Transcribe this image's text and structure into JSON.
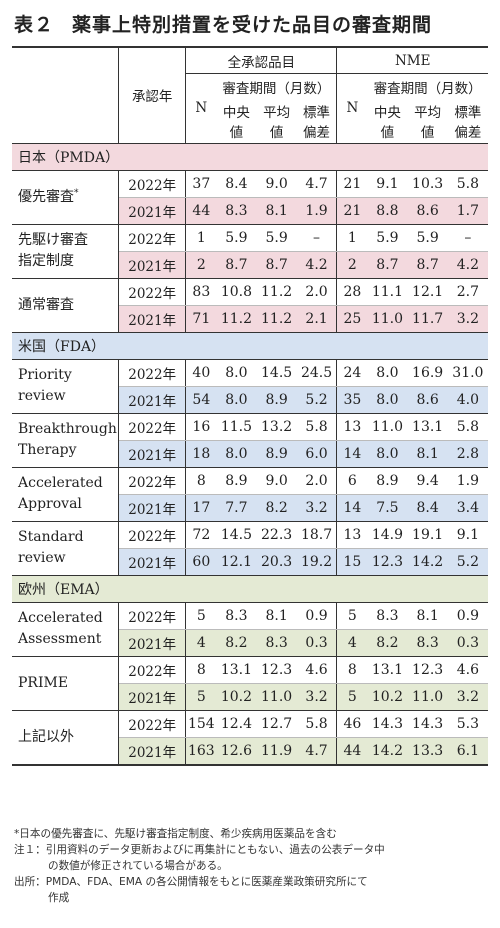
{
  "title_number": "表２",
  "title": "薬事上特別措置を受けた品目の審査期間",
  "header": {
    "year_col": "承認年",
    "group_all": "全承認品目",
    "group_nme": "NME",
    "n": "N",
    "period": "審査期間（月数）",
    "median_l1": "中央",
    "median_l2": "値",
    "mean_l1": "平均",
    "mean_l2": "値",
    "sd_l1": "標準",
    "sd_l2": "偏差"
  },
  "sections": [
    {
      "name": "日本（PMDA）",
      "groups": [
        {
          "label_l1": "優先審査",
          "label_sup": "*",
          "label_l2": "",
          "rows": [
            {
              "year": "2022年",
              "n": "37",
              "med": "8.4",
              "mean": "9.0",
              "sd": "4.7",
              "nn": "21",
              "nmed": "9.1",
              "nmean": "10.3",
              "nsd": "5.8"
            },
            {
              "year": "2021年",
              "n": "44",
              "med": "8.3",
              "mean": "8.1",
              "sd": "1.9",
              "nn": "21",
              "nmed": "8.8",
              "nmean": "8.6",
              "nsd": "1.7"
            }
          ]
        },
        {
          "label_l1": "先駆け審査",
          "label_sup": "",
          "label_l2": "指定制度",
          "rows": [
            {
              "year": "2022年",
              "n": "1",
              "med": "5.9",
              "mean": "5.9",
              "sd": "–",
              "nn": "1",
              "nmed": "5.9",
              "nmean": "5.9",
              "nsd": "–"
            },
            {
              "year": "2021年",
              "n": "2",
              "med": "8.7",
              "mean": "8.7",
              "sd": "4.2",
              "nn": "2",
              "nmed": "8.7",
              "nmean": "8.7",
              "nsd": "4.2"
            }
          ]
        },
        {
          "label_l1": "通常審査",
          "label_sup": "",
          "label_l2": "",
          "rows": [
            {
              "year": "2022年",
              "n": "83",
              "med": "10.8",
              "mean": "11.2",
              "sd": "2.0",
              "nn": "28",
              "nmed": "11.1",
              "nmean": "12.1",
              "nsd": "2.7"
            },
            {
              "year": "2021年",
              "n": "71",
              "med": "11.2",
              "mean": "11.2",
              "sd": "2.1",
              "nn": "25",
              "nmed": "11.0",
              "nmean": "11.7",
              "nsd": "3.2"
            }
          ]
        }
      ]
    },
    {
      "name": "米国（FDA）",
      "groups": [
        {
          "label_l1": "Priority",
          "label_sup": "",
          "label_l2": "review",
          "rows": [
            {
              "year": "2022年",
              "n": "40",
              "med": "8.0",
              "mean": "14.5",
              "sd": "24.5",
              "nn": "24",
              "nmed": "8.0",
              "nmean": "16.9",
              "nsd": "31.0"
            },
            {
              "year": "2021年",
              "n": "54",
              "med": "8.0",
              "mean": "8.9",
              "sd": "5.2",
              "nn": "35",
              "nmed": "8.0",
              "nmean": "8.6",
              "nsd": "4.0"
            }
          ]
        },
        {
          "label_l1": "Breakthrough",
          "label_sup": "",
          "label_l2": "Therapy",
          "rows": [
            {
              "year": "2022年",
              "n": "16",
              "med": "11.5",
              "mean": "13.2",
              "sd": "5.8",
              "nn": "13",
              "nmed": "11.0",
              "nmean": "13.1",
              "nsd": "5.8"
            },
            {
              "year": "2021年",
              "n": "18",
              "med": "8.0",
              "mean": "8.9",
              "sd": "6.0",
              "nn": "14",
              "nmed": "8.0",
              "nmean": "8.1",
              "nsd": "2.8"
            }
          ]
        },
        {
          "label_l1": "Accelerated",
          "label_sup": "",
          "label_l2": "Approval",
          "rows": [
            {
              "year": "2022年",
              "n": "8",
              "med": "8.9",
              "mean": "9.0",
              "sd": "2.0",
              "nn": "6",
              "nmed": "8.9",
              "nmean": "9.4",
              "nsd": "1.9"
            },
            {
              "year": "2021年",
              "n": "17",
              "med": "7.7",
              "mean": "8.2",
              "sd": "3.2",
              "nn": "14",
              "nmed": "7.5",
              "nmean": "8.4",
              "nsd": "3.4"
            }
          ]
        },
        {
          "label_l1": "Standard",
          "label_sup": "",
          "label_l2": "review",
          "rows": [
            {
              "year": "2022年",
              "n": "72",
              "med": "14.5",
              "mean": "22.3",
              "sd": "18.7",
              "nn": "13",
              "nmed": "14.9",
              "nmean": "19.1",
              "nsd": "9.1"
            },
            {
              "year": "2021年",
              "n": "60",
              "med": "12.1",
              "mean": "20.3",
              "sd": "19.2",
              "nn": "15",
              "nmed": "12.3",
              "nmean": "14.2",
              "nsd": "5.2"
            }
          ]
        }
      ]
    },
    {
      "name": "欧州（EMA）",
      "groups": [
        {
          "label_l1": "Accelerated",
          "label_sup": "",
          "label_l2": "Assessment",
          "rows": [
            {
              "year": "2022年",
              "n": "5",
              "med": "8.3",
              "mean": "8.1",
              "sd": "0.9",
              "nn": "5",
              "nmed": "8.3",
              "nmean": "8.1",
              "nsd": "0.9"
            },
            {
              "year": "2021年",
              "n": "4",
              "med": "8.2",
              "mean": "8.3",
              "sd": "0.3",
              "nn": "4",
              "nmed": "8.2",
              "nmean": "8.3",
              "nsd": "0.3"
            }
          ]
        },
        {
          "label_l1": "PRIME",
          "label_sup": "",
          "label_l2": "",
          "rows": [
            {
              "year": "2022年",
              "n": "8",
              "med": "13.1",
              "mean": "12.3",
              "sd": "4.6",
              "nn": "8",
              "nmed": "13.1",
              "nmean": "12.3",
              "nsd": "4.6"
            },
            {
              "year": "2021年",
              "n": "5",
              "med": "10.2",
              "mean": "11.0",
              "sd": "3.2",
              "nn": "5",
              "nmed": "10.2",
              "nmean": "11.0",
              "nsd": "3.2"
            }
          ]
        },
        {
          "label_l1": "上記以外",
          "label_sup": "",
          "label_l2": "",
          "rows": [
            {
              "year": "2022年",
              "n": "154",
              "med": "12.4",
              "mean": "12.7",
              "sd": "5.8",
              "nn": "46",
              "nmed": "14.3",
              "nmean": "14.3",
              "nsd": "5.3"
            },
            {
              "year": "2021年",
              "n": "163",
              "med": "12.6",
              "mean": "11.9",
              "sd": "4.7",
              "nn": "44",
              "nmed": "14.2",
              "nmean": "13.3",
              "nsd": "6.1"
            }
          ]
        }
      ]
    }
  ],
  "notes": {
    "star": "*日本の優先審査に、先駆け審査指定制度、希少疾病用医薬品を含む",
    "note1_a": "注１：引用資料のデータ更新およびに再集計にともない、過去の公表データ中",
    "note1_b": "の数値が修正されている場合がある。",
    "source_a": "出所：PMDA、FDA、EMA の各公開情報をもとに医薬産業政策研究所にて",
    "source_b": "作成"
  },
  "colors": {
    "japan": "#f3d9de",
    "usa": "#d6e2f2",
    "europe": "#e4ead4"
  }
}
